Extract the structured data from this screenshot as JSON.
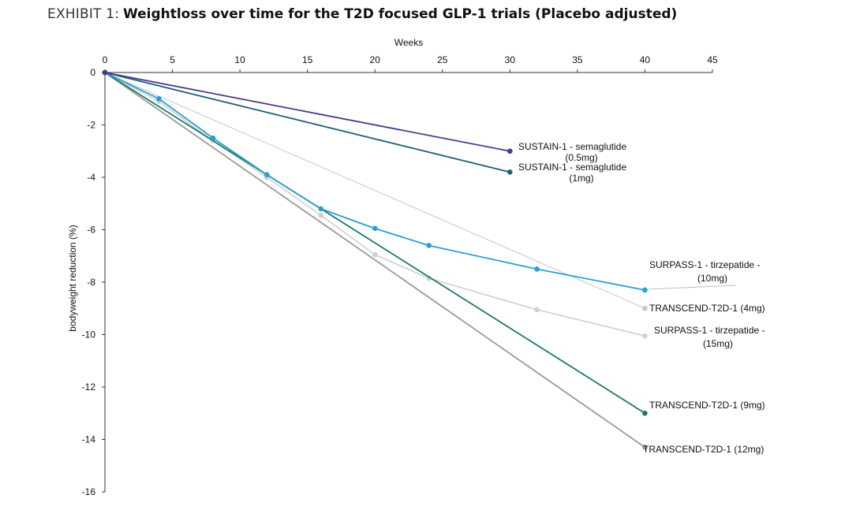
{
  "header": {
    "prefix": "EXHIBIT 1:",
    "title": "Weightloss over time for the T2D focused GLP-1 trials (Placebo adjusted)"
  },
  "chart_data": {
    "type": "line",
    "title": "Weightloss over time for the T2D focused GLP-1 trials (Placebo adjusted)",
    "xlabel": "Weeks",
    "ylabel": "bodyweight reduction (%)",
    "xlim": [
      0,
      45
    ],
    "ylim": [
      -16,
      0
    ],
    "xticks": [
      0,
      5,
      10,
      15,
      20,
      25,
      30,
      35,
      40,
      45
    ],
    "yticks": [
      0,
      -2,
      -4,
      -6,
      -8,
      -10,
      -12,
      -14,
      -16
    ],
    "x_axis_position": "top",
    "legend": "none (direct labels)",
    "grid": false,
    "series": [
      {
        "name": "SUSTAIN-1 - semaglutide (0.5mg)",
        "label_lines": [
          "SUSTAIN-1 - semaglutide",
          "(0.5mg)"
        ],
        "color": "#4a3a8c",
        "x": [
          0,
          30
        ],
        "y": [
          0,
          -3.0
        ]
      },
      {
        "name": "SUSTAIN-1 - semaglutide (1mg)",
        "label_lines": [
          "SUSTAIN-1 - semaglutide",
          "(1mg)"
        ],
        "color": "#1f5f7a",
        "x": [
          0,
          30
        ],
        "y": [
          0,
          -3.8
        ]
      },
      {
        "name": "SURPASS-1 - tirzepatide - (10mg)",
        "label_lines": [
          "SURPASS-1 - tirzepatide -",
          "(10mg)"
        ],
        "color": "#2aa0d0",
        "x": [
          0,
          4,
          8,
          12,
          16,
          20,
          24,
          32,
          40
        ],
        "y": [
          0,
          -1.0,
          -2.5,
          -3.9,
          -5.2,
          -5.95,
          -6.6,
          -7.5,
          -8.3
        ]
      },
      {
        "name": "TRANSCEND-T2D-1 (4mg)",
        "label_lines": [
          "TRANSCEND-T2D-1 (4mg)"
        ],
        "color": "#c8c8c8",
        "x": [
          0,
          40
        ],
        "y": [
          0,
          -9.0
        ]
      },
      {
        "name": "SURPASS-1 - tirzepatide - (15mg)",
        "label_lines": [
          "SURPASS-1 - tirzepatide -",
          "(15mg)"
        ],
        "color": "#cfcfcf",
        "x": [
          0,
          4,
          8,
          12,
          16,
          20,
          24,
          32,
          40
        ],
        "y": [
          0,
          -1.1,
          -2.6,
          -4.0,
          -5.45,
          -6.95,
          -7.85,
          -9.05,
          -10.05
        ]
      },
      {
        "name": "TRANSCEND-T2D-1 (9mg)",
        "label_lines": [
          "TRANSCEND-T2D-1 (9mg)"
        ],
        "color": "#1a7a6a",
        "x": [
          0,
          40
        ],
        "y": [
          0,
          -13.0
        ]
      },
      {
        "name": "TRANSCEND-T2D-1 (12mg)",
        "label_lines": [
          "TRANSCEND-T2D-1 (12mg)"
        ],
        "color": "#9a9a9a",
        "x": [
          0,
          40
        ],
        "y": [
          0,
          -14.3
        ]
      }
    ]
  }
}
